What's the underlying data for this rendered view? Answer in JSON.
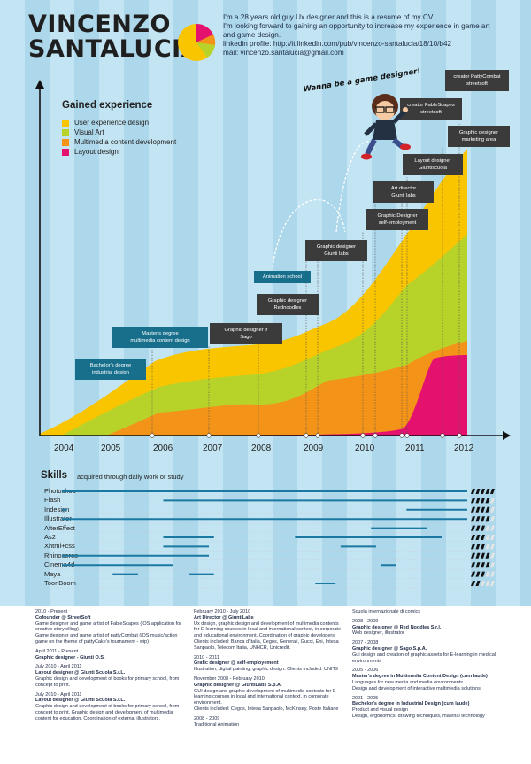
{
  "header": {
    "first_name": "VINCENZO",
    "last_name": "SANTALUCIA",
    "intro_lines": [
      "I'm a 28 years old guy Ux designer and this is a resume of my CV.",
      "I'm looking forward to gaining an opportunity to increase my experience in game art",
      "and game design.",
      "linkedin profile: http://it.linkedin.com/pub/vincenzo-santalucia/18/10/b42",
      "mail: vincenzo.santalucia@gmail.com"
    ],
    "speech": "Wanna be a game designer!"
  },
  "colors": {
    "ux": "#f9c400",
    "visual": "#b7d32a",
    "multimedia": "#f39419",
    "layout": "#e5116f",
    "dark_box": "#3b3b3b",
    "blue_box": "#176f8c",
    "skill_bar": "#1a78a1"
  },
  "experience_chart": {
    "title": "Gained experience",
    "legend": [
      {
        "label": "User experience design",
        "color": "#f9c400"
      },
      {
        "label": "Visual Art",
        "color": "#b7d32a"
      },
      {
        "label": "Multimedia content development",
        "color": "#f39419"
      },
      {
        "label": "Layout design",
        "color": "#e5116f"
      }
    ],
    "years": [
      "2004",
      "2005",
      "2006",
      "2007",
      "2008",
      "2009",
      "2010",
      "2011",
      "2012"
    ],
    "milestones": [
      {
        "label": "Bachelor's degree\nindustrial design",
        "style": "blue"
      },
      {
        "label": "Master's degree\nmultimedia content design",
        "style": "blue"
      },
      {
        "label": "Graphic designer jr\nSago",
        "style": "dark"
      },
      {
        "label": "Animation school",
        "style": "blue"
      },
      {
        "label": "Graphic designer\nRednoodles",
        "style": "dark"
      },
      {
        "label": "Graphic designer\nGiunti labs",
        "style": "dark"
      },
      {
        "label": "Graphic Designer\nself-employment",
        "style": "dark"
      },
      {
        "label": "Art director\nGiunti labs",
        "style": "dark"
      },
      {
        "label": "Layout designer\nGiuntiscuola",
        "style": "dark"
      },
      {
        "label": "Graphic designer\nmarketing area",
        "style": "dark"
      },
      {
        "label": "creator FableScapes\nstreetsoft",
        "style": "dark"
      },
      {
        "label": "creator PattyCombat\nstreetsoft",
        "style": "dark"
      }
    ]
  },
  "skills": {
    "title": "Skills",
    "subtitle": "acquired through daily work or study",
    "items": [
      {
        "name": "Photoshop",
        "ranges": [
          [
            2004.0,
            2012.0
          ]
        ],
        "level": 5
      },
      {
        "name": "Flash",
        "ranges": [
          [
            2006.0,
            2012.0
          ]
        ],
        "level": 4
      },
      {
        "name": "Indesign",
        "ranges": [
          [
            2004.0,
            2004.1
          ],
          [
            2010.8,
            2012.0
          ]
        ],
        "level": 4
      },
      {
        "name": "Illustrator",
        "ranges": [
          [
            2004.0,
            2012.0
          ]
        ],
        "level": 4
      },
      {
        "name": "AfterEffect",
        "ranges": [
          [
            2010.1,
            2011.2
          ]
        ],
        "level": 3
      },
      {
        "name": "As2",
        "ranges": [
          [
            2006.0,
            2007.0
          ],
          [
            2008.6,
            2011.5
          ]
        ],
        "level": 3
      },
      {
        "name": "Xhtml+css",
        "ranges": [
          [
            2006.0,
            2006.9
          ],
          [
            2009.5,
            2010.2
          ]
        ],
        "level": 3
      },
      {
        "name": "Rhinoceros",
        "ranges": [
          [
            2004.0,
            2006.9
          ]
        ],
        "level": 4
      },
      {
        "name": "Cinema4d",
        "ranges": [
          [
            2004.0,
            2006.2
          ],
          [
            2010.3,
            2010.6
          ]
        ],
        "level": 4
      },
      {
        "name": "Maya",
        "ranges": [
          [
            2005.0,
            2005.5
          ],
          [
            2006.5,
            2007.0
          ]
        ],
        "level": 3
      },
      {
        "name": "ToonBoom",
        "ranges": [
          [
            2009.0,
            2009.4
          ]
        ],
        "level": 2
      }
    ]
  },
  "cv_columns": [
    [
      {
        "date": "2010 - Present",
        "role": "Cofounder @ StreetSoft",
        "desc": "Game designer and game artist of FableScapes (iOS application for creative storytelling)\nGame designer and game artist of pattyCombat (iOS music/action game on the theme of pattyCake's tournament - wip)"
      },
      {
        "date": "April 2011 - Present",
        "role": "Graphic designer - Giunti O.S.",
        "desc": ""
      },
      {
        "date": "July 2010 - April 2011",
        "role": "Layout designer @ Giunti Scuola S.r.L.",
        "desc": "Graphic design and development of books for primary school, from concept to print."
      },
      {
        "date": "July 2010 - April 2011",
        "role": "Layout designer @ Giunti Scuola S.r.L.",
        "desc": "Graphic design and development of books for primary school, from concept to print. Graphic design and development of multimedia content for education. Coordination of external illustrators."
      }
    ],
    [
      {
        "date": "February 2010 - July 2010",
        "role": "Art Director @ GiuntiLabs",
        "desc": "Ux design, graphic design and development of multimedia contents for E-learning courses in local and international context, in corporate and educational environment. Coordination of graphic developers. Clients included: Banca d'Italia, Cegos, Generali, Gucci, Eni, Intesa Sanpaolo, Telecom Italia, UNHCR, Unicredit."
      },
      {
        "date": "2010 - 2011",
        "role": "Grafic designer @ self-employement",
        "desc": "Illustration, digital painting, graphic design. Clients included: UNIT9"
      },
      {
        "date": "November 2008 - February 2010",
        "role": "Graphic designer @ GiuntiLabs S.p.A.",
        "desc": "GUI design and graphic development of multimedia contents for E-learning courses in local and international context, in corporate environment.\nClients included: Cegos, Intesa Sanpaolo, McKinsey, Poste Italiane"
      },
      {
        "date": "2008 - 2009",
        "role": "",
        "desc": "Traditional Animation"
      }
    ],
    [
      {
        "date": "",
        "role": "",
        "desc": "Scuola internazionale di comics"
      },
      {
        "date": "2008 - 2009",
        "role": "Graphic designer @ Red Noodles S.r.l.",
        "desc": "Web designer, illustrator"
      },
      {
        "date": "2007 - 2008",
        "role": "Graphic designer @ Sago S.p.A.",
        "desc": "Gui design and creation of graphic assets for E-learning in medical environments"
      },
      {
        "date": "2005 - 2006",
        "role": "Master's degree in Multimedia Content Design (cum laude)",
        "desc": "Languages for new media and media environments\nDesign and development of interactive multimedia solutions"
      },
      {
        "date": "2001 - 2005",
        "role": "Bachelor's degree in Industrial Design (cum laude)",
        "desc": "Product and visual design\nDesign, ergonomics, drawing techniques, material technology"
      }
    ]
  ]
}
